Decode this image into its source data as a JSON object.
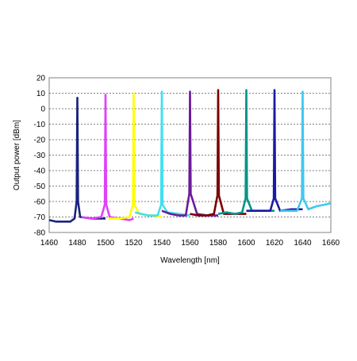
{
  "chart_data": {
    "type": "line",
    "title": "",
    "xlabel": "Wavelength [nm]",
    "ylabel": "Output power [dBm]",
    "xlim": [
      1460,
      1660
    ],
    "ylim": [
      -80,
      20
    ],
    "xticks": [
      1460,
      1480,
      1500,
      1520,
      1540,
      1560,
      1580,
      1600,
      1620,
      1640,
      1660
    ],
    "yticks": [
      20,
      10,
      0,
      -10,
      -20,
      -30,
      -40,
      -50,
      -60,
      -70,
      -80
    ],
    "grid": "horizontal dashed",
    "legend": "none",
    "series": [
      {
        "color": "#1a237e",
        "peak_x": 1480,
        "peak_y": 7,
        "x": [
          1460,
          1465,
          1470,
          1475,
          1478,
          1479.5,
          1480,
          1480.5,
          1482,
          1490,
          1498,
          1500
        ],
        "y": [
          -72,
          -73,
          -73,
          -73,
          -71,
          -60,
          7,
          -60,
          -70,
          -71,
          -71,
          -71
        ]
      },
      {
        "color": "#e040fb",
        "peak_x": 1500,
        "peak_y": 9,
        "x": [
          1483,
          1490,
          1497,
          1499.5,
          1500,
          1500.5,
          1503,
          1510,
          1517,
          1520
        ],
        "y": [
          -70,
          -71,
          -70,
          -62,
          9,
          -62,
          -70,
          -71,
          -72,
          -71
        ]
      },
      {
        "color": "#ffff00",
        "peak_x": 1520,
        "peak_y": 10,
        "x": [
          1502,
          1510,
          1517,
          1519.5,
          1520,
          1520.5,
          1524,
          1532,
          1540
        ],
        "y": [
          -71,
          -71,
          -70,
          -62,
          10,
          -62,
          -68,
          -69,
          -70
        ]
      },
      {
        "color": "#40e0f0",
        "peak_x": 1540,
        "peak_y": 11,
        "x": [
          1521,
          1530,
          1537,
          1539.5,
          1540,
          1540.5,
          1544,
          1552,
          1560
        ],
        "y": [
          -67,
          -69,
          -69,
          -62,
          11,
          -62,
          -67,
          -68,
          -69
        ]
      },
      {
        "color": "#6a1b9a",
        "peak_x": 1560,
        "peak_y": 11,
        "x": [
          1540,
          1546,
          1552,
          1557,
          1559.5,
          1560,
          1560.5,
          1565,
          1572,
          1580
        ],
        "y": [
          -66,
          -68,
          -69,
          -69,
          -55,
          11,
          -55,
          -68,
          -69,
          -69
        ]
      },
      {
        "color": "#7b0000",
        "peak_x": 1580,
        "peak_y": 12,
        "x": [
          1560,
          1566,
          1572,
          1577,
          1579.5,
          1580,
          1580.5,
          1584,
          1592,
          1600
        ],
        "y": [
          -68,
          -69,
          -69,
          -68,
          -56,
          12,
          -56,
          -68,
          -68,
          -68
        ]
      },
      {
        "color": "#009688",
        "peak_x": 1600,
        "peak_y": 12,
        "x": [
          1580,
          1586,
          1592,
          1597,
          1599.5,
          1600,
          1600.5,
          1604,
          1612,
          1620
        ],
        "y": [
          -68,
          -67,
          -68,
          -67,
          -58,
          12,
          -58,
          -66,
          -66,
          -66
        ]
      },
      {
        "color": "#1a1aa8",
        "peak_x": 1620,
        "peak_y": 12,
        "x": [
          1600,
          1606,
          1612,
          1617,
          1619.5,
          1620,
          1620.5,
          1624,
          1632,
          1640
        ],
        "y": [
          -66,
          -66,
          -66,
          -66,
          -58,
          12,
          -58,
          -66,
          -65,
          -65
        ]
      },
      {
        "color": "#40c8f0",
        "peak_x": 1640,
        "peak_y": 11,
        "x": [
          1624,
          1630,
          1636,
          1639.5,
          1640,
          1640.5,
          1644,
          1650,
          1656,
          1660
        ],
        "y": [
          -66,
          -66,
          -66,
          -58,
          11,
          -58,
          -65,
          -63,
          -62,
          -61
        ]
      }
    ]
  }
}
